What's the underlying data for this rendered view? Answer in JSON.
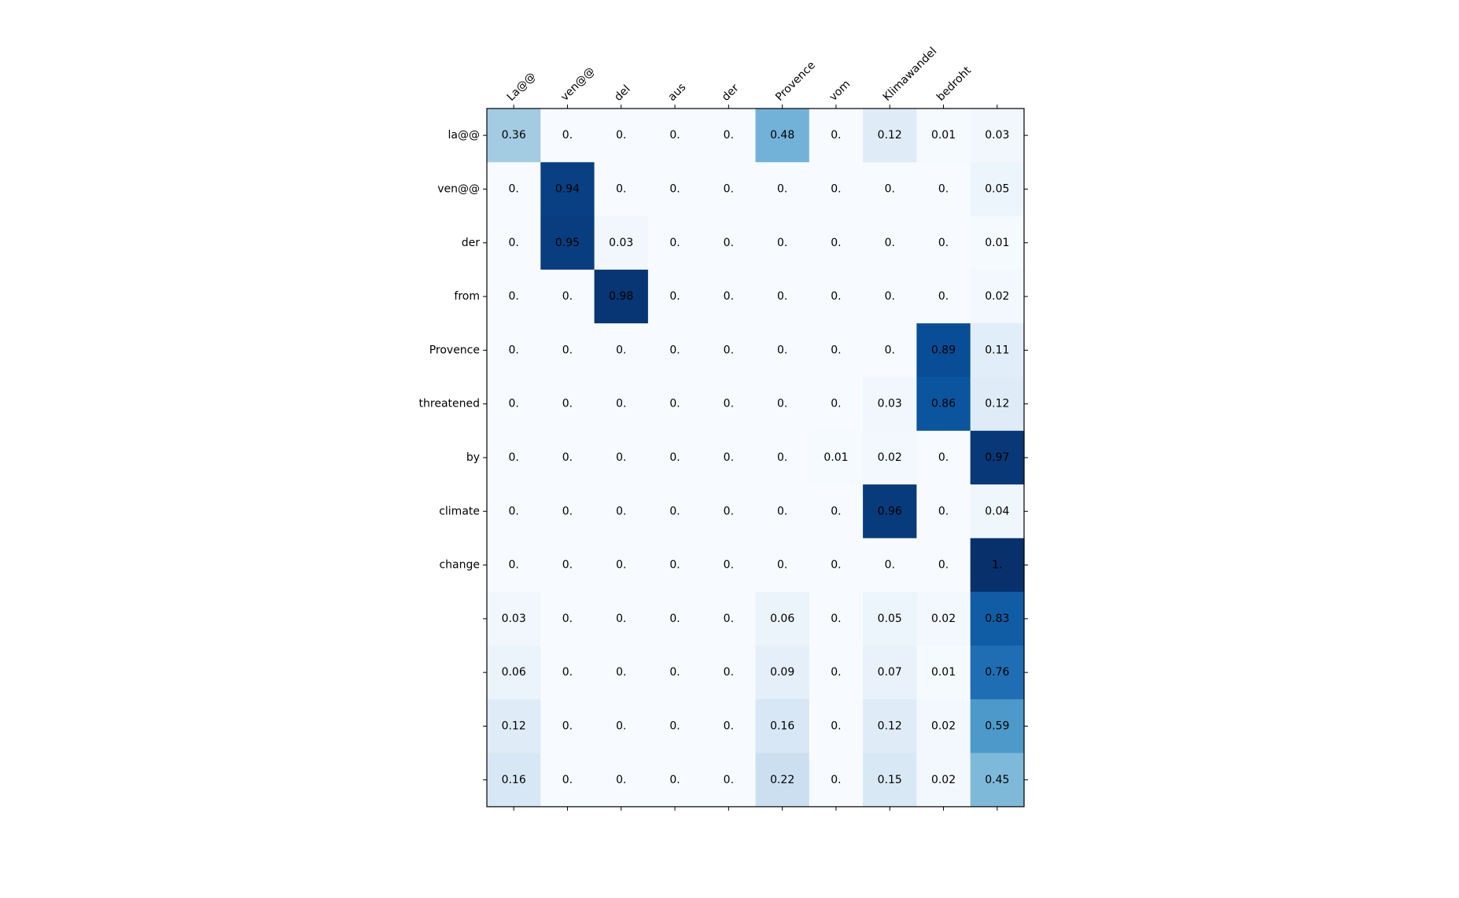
{
  "chart_data": {
    "type": "heatmap",
    "colormap": "Blues",
    "value_range": [
      0,
      1
    ],
    "x_labels": [
      "La@@",
      "ven@@",
      "del",
      "aus",
      "der",
      "Provence",
      "vom",
      "Klimawandel",
      "bedroht",
      ""
    ],
    "y_labels": [
      "la@@",
      "ven@@",
      "der",
      "from",
      "Provence",
      "threatened",
      "by",
      "climate",
      "change",
      "",
      "",
      "",
      ""
    ],
    "values": [
      [
        0.36,
        0,
        0,
        0,
        0,
        0.48,
        0,
        0.12,
        0.01,
        0.03
      ],
      [
        0,
        0.94,
        0,
        0,
        0,
        0,
        0,
        0,
        0,
        0.05
      ],
      [
        0,
        0.95,
        0.03,
        0,
        0,
        0,
        0,
        0,
        0,
        0.01
      ],
      [
        0,
        0,
        0.98,
        0,
        0,
        0,
        0,
        0,
        0,
        0.02
      ],
      [
        0,
        0,
        0,
        0,
        0,
        0,
        0,
        0,
        0.89,
        0.11
      ],
      [
        0,
        0,
        0,
        0,
        0,
        0,
        0,
        0.03,
        0.86,
        0.12
      ],
      [
        0,
        0,
        0,
        0,
        0,
        0,
        0.01,
        0.02,
        0,
        0.97
      ],
      [
        0,
        0,
        0,
        0,
        0,
        0,
        0,
        0.96,
        0,
        0.04
      ],
      [
        0,
        0,
        0,
        0,
        0,
        0,
        0,
        0,
        0,
        1
      ],
      [
        0.03,
        0,
        0,
        0,
        0,
        0.06,
        0,
        0.05,
        0.02,
        0.83
      ],
      [
        0.06,
        0,
        0,
        0,
        0,
        0.09,
        0,
        0.07,
        0.01,
        0.76
      ],
      [
        0.12,
        0,
        0,
        0,
        0,
        0.16,
        0,
        0.12,
        0.02,
        0.59
      ],
      [
        0.16,
        0,
        0,
        0,
        0,
        0.22,
        0,
        0.15,
        0.02,
        0.45
      ]
    ],
    "cell_text": [
      [
        "0.36",
        "0.",
        "0.",
        "0.",
        "0.",
        "0.48",
        "0.",
        "0.12",
        "0.01",
        "0.03"
      ],
      [
        "0.",
        "0.94",
        "0.",
        "0.",
        "0.",
        "0.",
        "0.",
        "0.",
        "0.",
        "0.05"
      ],
      [
        "0.",
        "0.95",
        "0.03",
        "0.",
        "0.",
        "0.",
        "0.",
        "0.",
        "0.",
        "0.01"
      ],
      [
        "0.",
        "0.",
        "0.98",
        "0.",
        "0.",
        "0.",
        "0.",
        "0.",
        "0.",
        "0.02"
      ],
      [
        "0.",
        "0.",
        "0.",
        "0.",
        "0.",
        "0.",
        "0.",
        "0.",
        "0.89",
        "0.11"
      ],
      [
        "0.",
        "0.",
        "0.",
        "0.",
        "0.",
        "0.",
        "0.",
        "0.03",
        "0.86",
        "0.12"
      ],
      [
        "0.",
        "0.",
        "0.",
        "0.",
        "0.",
        "0.",
        "0.01",
        "0.02",
        "0.",
        "0.97"
      ],
      [
        "0.",
        "0.",
        "0.",
        "0.",
        "0.",
        "0.",
        "0.",
        "0.96",
        "0.",
        "0.04"
      ],
      [
        "0.",
        "0.",
        "0.",
        "0.",
        "0.",
        "0.",
        "0.",
        "0.",
        "0.",
        "1."
      ],
      [
        "0.03",
        "0.",
        "0.",
        "0.",
        "0.",
        "0.06",
        "0.",
        "0.05",
        "0.02",
        "0.83"
      ],
      [
        "0.06",
        "0.",
        "0.",
        "0.",
        "0.",
        "0.09",
        "0.",
        "0.07",
        "0.01",
        "0.76"
      ],
      [
        "0.12",
        "0.",
        "0.",
        "0.",
        "0.",
        "0.16",
        "0.",
        "0.12",
        "0.02",
        "0.59"
      ],
      [
        "0.16",
        "0.",
        "0.",
        "0.",
        "0.",
        "0.22",
        "0.",
        "0.15",
        "0.02",
        "0.45"
      ]
    ],
    "x_label_position": "top",
    "x_label_rotation_deg": 45,
    "grid": false,
    "legend": "none",
    "text_color": "#000000",
    "axis_color": "#000000"
  }
}
